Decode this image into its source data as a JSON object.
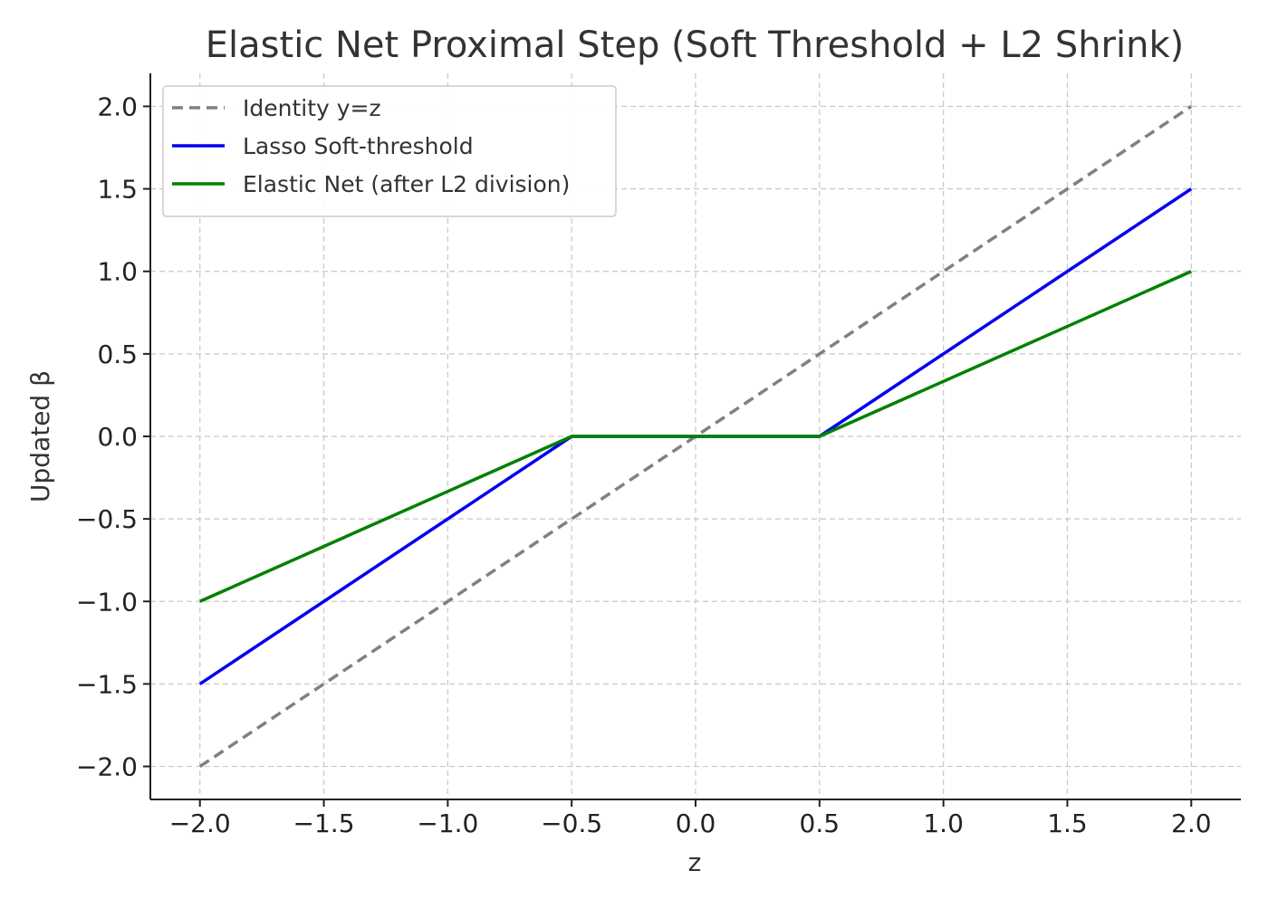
{
  "chart_data": {
    "type": "line",
    "title": "Elastic Net Proximal Step (Soft Threshold + L2 Shrink)",
    "xlabel": "z",
    "ylabel": "Updated β",
    "xlim": [
      -2.2,
      2.2
    ],
    "ylim": [
      -2.2,
      2.2
    ],
    "x_ticks": [
      -2.0,
      -1.5,
      -1.0,
      -0.5,
      0.0,
      0.5,
      1.0,
      1.5,
      2.0
    ],
    "y_ticks": [
      -2.0,
      -1.5,
      -1.0,
      -0.5,
      0.0,
      0.5,
      1.0,
      1.5,
      2.0
    ],
    "x_tick_labels": [
      "−2.0",
      "−1.5",
      "−1.0",
      "−0.5",
      "0.0",
      "0.5",
      "1.0",
      "1.5",
      "2.0"
    ],
    "y_tick_labels": [
      "−2.0",
      "−1.5",
      "−1.0",
      "−0.5",
      "0.0",
      "0.5",
      "1.0",
      "1.5",
      "2.0"
    ],
    "grid": true,
    "legend_position": "top-left",
    "series": [
      {
        "name": "Identity y=z",
        "color": "#808080",
        "style": "dashed",
        "x": [
          -2.0,
          2.0
        ],
        "y": [
          -2.0,
          2.0
        ]
      },
      {
        "name": "Lasso Soft-threshold",
        "color": "#0000ee",
        "style": "solid",
        "x": [
          -2.0,
          -0.5,
          0.5,
          2.0
        ],
        "y": [
          -1.5,
          0.0,
          0.0,
          1.5
        ]
      },
      {
        "name": "Elastic Net (after L2 division)",
        "color": "#008000",
        "style": "solid",
        "x": [
          -2.0,
          -0.5,
          0.5,
          2.0
        ],
        "y": [
          -1.0,
          0.0,
          0.0,
          1.0
        ]
      }
    ]
  }
}
